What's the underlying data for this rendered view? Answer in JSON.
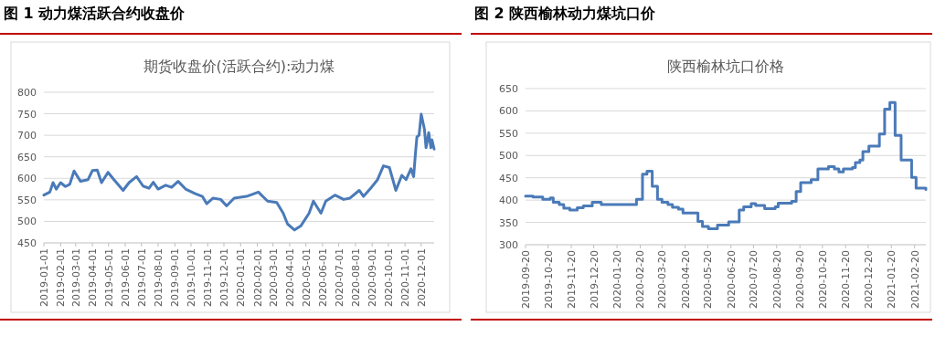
{
  "chart_data": [
    {
      "type": "line",
      "title": "图 1  动力煤活跃合约收盘价",
      "subtitle": "期货收盘价(活跃合约):动力煤",
      "color": "#4a7ab8",
      "grid": "y",
      "x": [
        "2019-01-01",
        "2019-01-12",
        "2019-01-18",
        "2019-01-24",
        "2019-02-01",
        "2019-02-10",
        "2019-02-18",
        "2019-02-26",
        "2019-03-10",
        "2019-03-24",
        "2019-04-01",
        "2019-04-10",
        "2019-04-18",
        "2019-04-30",
        "2019-05-11",
        "2019-05-28",
        "2019-06-08",
        "2019-06-22",
        "2019-07-04",
        "2019-07-15",
        "2019-07-23",
        "2019-08-01",
        "2019-08-15",
        "2019-08-26",
        "2019-09-07",
        "2019-09-21",
        "2019-10-08",
        "2019-10-22",
        "2019-10-30",
        "2019-11-11",
        "2019-11-25",
        "2019-12-06",
        "2019-12-20",
        "2020-01-12",
        "2020-02-03",
        "2020-02-20",
        "2020-03-08",
        "2020-03-20",
        "2020-03-28",
        "2020-04-10",
        "2020-04-22",
        "2020-05-07",
        "2020-05-15",
        "2020-05-29",
        "2020-06-07",
        "2020-06-24",
        "2020-07-10",
        "2020-07-22",
        "2020-08-08",
        "2020-08-16",
        "2020-08-28",
        "2020-09-11",
        "2020-09-22",
        "2020-10-03",
        "2020-10-15",
        "2020-10-26",
        "2020-11-03",
        "2020-11-12",
        "2020-11-17",
        "2020-11-20",
        "2020-11-23",
        "2020-11-27",
        "2020-12-01",
        "2020-12-07",
        "2020-12-10",
        "2020-12-15",
        "2020-12-19",
        "2020-12-21",
        "2020-12-25"
      ],
      "values": [
        561,
        568,
        590,
        575,
        590,
        581,
        586,
        617,
        593,
        597,
        618,
        619,
        590,
        614,
        597,
        572,
        590,
        604,
        582,
        577,
        591,
        575,
        584,
        579,
        593,
        575,
        565,
        558,
        541,
        554,
        551,
        536,
        554,
        558,
        568,
        547,
        544,
        519,
        494,
        480,
        490,
        519,
        547,
        519,
        547,
        561,
        551,
        554,
        572,
        558,
        575,
        597,
        629,
        625,
        572,
        607,
        597,
        622,
        604,
        653,
        696,
        700,
        749,
        714,
        671,
        706,
        671,
        689,
        668
      ],
      "xlim": [
        "2019-01-01",
        "2020-12-25"
      ],
      "ylim": [
        450,
        800
      ],
      "yticks": [
        450,
        500,
        550,
        600,
        650,
        700,
        750,
        800
      ],
      "xticks": [
        "2019-01-01",
        "2019-02-01",
        "2019-03-01",
        "2019-04-01",
        "2019-05-01",
        "2019-06-01",
        "2019-07-01",
        "2019-08-01",
        "2019-09-01",
        "2019-10-01",
        "2019-11-01",
        "2019-12-01",
        "2020-01-01",
        "2020-02-01",
        "2020-03-01",
        "2020-04-01",
        "2020-05-01",
        "2020-06-01",
        "2020-07-01",
        "2020-08-01",
        "2020-09-01",
        "2020-10-01",
        "2020-11-01",
        "2020-12-01"
      ]
    },
    {
      "type": "step",
      "title": "图 2  陕西榆林动力煤坑口价",
      "subtitle": "陕西榆林坑口价格",
      "color": "#4a7ab8",
      "grid": "y",
      "x": [
        "2019-09-20",
        "2019-09-30",
        "2019-10-13",
        "2019-10-23",
        "2019-10-27",
        "2019-11-04",
        "2019-11-10",
        "2019-11-18",
        "2019-11-28",
        "2019-12-06",
        "2019-12-18",
        "2019-12-30",
        "2020-02-15",
        "2020-02-23",
        "2020-02-29",
        "2020-03-07",
        "2020-03-14",
        "2020-03-20",
        "2020-03-28",
        "2020-04-03",
        "2020-04-11",
        "2020-04-17",
        "2020-05-07",
        "2020-05-13",
        "2020-05-21",
        "2020-06-02",
        "2020-06-17",
        "2020-07-01",
        "2020-07-07",
        "2020-07-17",
        "2020-07-23",
        "2020-08-04",
        "2020-08-18",
        "2020-08-22",
        "2020-09-09",
        "2020-09-15",
        "2020-09-21",
        "2020-10-05",
        "2020-10-14",
        "2020-10-28",
        "2020-11-05",
        "2020-11-11",
        "2020-11-17",
        "2020-11-29",
        "2020-12-03",
        "2020-12-09",
        "2020-12-13",
        "2020-12-21",
        "2021-01-04",
        "2021-01-11",
        "2021-01-18",
        "2021-01-25",
        "2021-02-02",
        "2021-02-16",
        "2021-02-22",
        "2021-03-07"
      ],
      "values": [
        409,
        407,
        402,
        405,
        395,
        390,
        382,
        378,
        383,
        387,
        395,
        390,
        402,
        458,
        465,
        431,
        402,
        395,
        390,
        384,
        380,
        371,
        352,
        341,
        336,
        344,
        351,
        378,
        385,
        392,
        388,
        381,
        385,
        393,
        397,
        419,
        439,
        446,
        470,
        475,
        470,
        463,
        470,
        473,
        484,
        490,
        509,
        521,
        548,
        604,
        619,
        545,
        490,
        451,
        427,
        424
      ],
      "xlim": [
        "2019-09-20",
        "2021-03-07"
      ],
      "ylim": [
        300,
        650
      ],
      "yticks": [
        300,
        350,
        400,
        450,
        500,
        550,
        600,
        650
      ],
      "xticks": [
        "2019-09-20",
        "2019-10-20",
        "2019-11-20",
        "2019-12-20",
        "2020-01-20",
        "2020-02-20",
        "2020-03-20",
        "2020-04-20",
        "2020-05-20",
        "2020-06-20",
        "2020-07-20",
        "2020-08-20",
        "2020-09-20",
        "2020-10-20",
        "2020-11-20",
        "2020-12-20",
        "2021-01-20",
        "2021-02-20"
      ]
    }
  ]
}
